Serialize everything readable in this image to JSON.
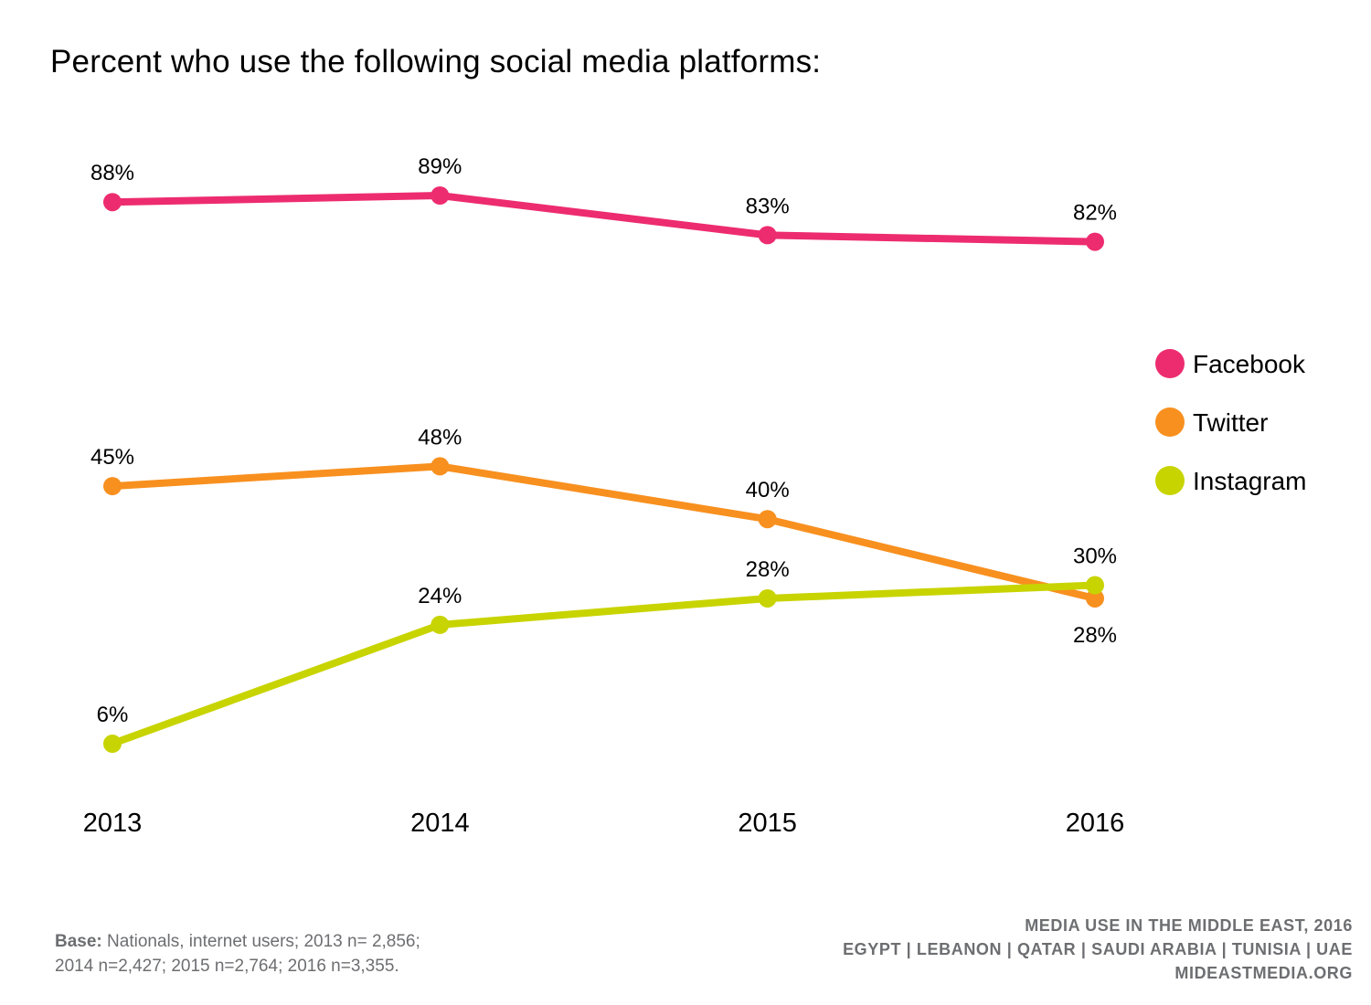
{
  "chart_data": {
    "type": "line",
    "title": "Percent who use the following social media platforms:",
    "xlabel": "",
    "ylabel": "",
    "categories": [
      "2013",
      "2014",
      "2015",
      "2016"
    ],
    "ylim": [
      0,
      100
    ],
    "grid": false,
    "legend_position": "right",
    "series": [
      {
        "name": "Facebook",
        "color": "#ed2c6f",
        "values": [
          88,
          89,
          83,
          82
        ],
        "labels": [
          "88%",
          "89%",
          "83%",
          "82%"
        ],
        "label_positions": [
          "above",
          "above",
          "above",
          "above"
        ]
      },
      {
        "name": "Twitter",
        "color": "#f8901f",
        "values": [
          45,
          48,
          40,
          28
        ],
        "labels": [
          "45%",
          "48%",
          "40%",
          "28%"
        ],
        "label_positions": [
          "above",
          "above",
          "above",
          "below"
        ]
      },
      {
        "name": "Instagram",
        "color": "#c8d400",
        "values": [
          6,
          24,
          28,
          30
        ],
        "labels": [
          "6%",
          "24%",
          "28%",
          "30%"
        ],
        "label_positions": [
          "above",
          "above",
          "above",
          "above"
        ]
      }
    ]
  },
  "footer": {
    "base_label": "Base:",
    "base_text": " Nationals, internet users; 2013 n= 2,856;",
    "base_text_line2": "2014 n=2,427; 2015 n=2,764; 2016 n=3,355.",
    "source_line1": "MEDIA USE IN THE MIDDLE EAST, 2016",
    "source_line2": "EGYPT | LEBANON | QATAR | SAUDI ARABIA | TUNISIA | UAE",
    "source_line3": "MIDEASTMEDIA.ORG"
  }
}
